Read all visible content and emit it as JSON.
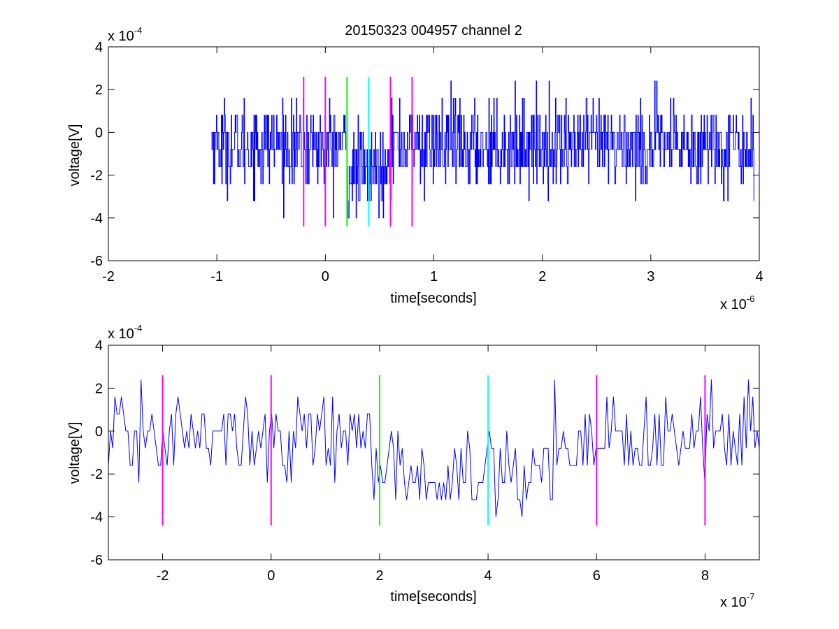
{
  "title": "20150323 004957 channel 2",
  "colors": {
    "signal": "#0000ff",
    "marker_magenta": "#ff00ff",
    "marker_green": "#00ff00",
    "marker_cyan": "#00ffff"
  },
  "chart_data": [
    {
      "type": "line",
      "title": "20150323 004957 channel 2",
      "xlabel": "time[seconds]",
      "ylabel": "voltage[V]",
      "x_exponent": "x 10",
      "x_exponent_power": "-6",
      "y_exponent": "x 10",
      "y_exponent_power": "-4",
      "xlim": [
        -2,
        4
      ],
      "ylim": [
        -6,
        4
      ],
      "xticks": [
        -2,
        -1,
        0,
        1,
        2,
        3,
        4
      ],
      "yticks": [
        -6,
        -4,
        -2,
        0,
        2,
        4
      ],
      "xtick_labels": [
        "-2",
        "-1",
        "0",
        "1",
        "2",
        "3",
        "4"
      ],
      "ytick_labels": [
        "-6",
        "-4",
        "-2",
        "0",
        "2",
        "4"
      ],
      "grid": false,
      "signal": {
        "x_start": -1.05,
        "x_end": 3.95,
        "levels": [
          -4.0,
          -3.2,
          -2.4,
          -1.6,
          -0.8,
          0.0,
          0.8,
          1.6,
          2.4
        ],
        "baseline": -0.6,
        "dip_range": [
          0.2,
          0.55
        ],
        "dip_level": -1.8,
        "samples": 1100
      },
      "markers": [
        {
          "x": -0.2,
          "color": "magenta",
          "y_range": [
            -4.4,
            2.6
          ]
        },
        {
          "x": 0.0,
          "color": "magenta",
          "y_range": [
            -4.4,
            2.6
          ]
        },
        {
          "x": 0.2,
          "color": "green",
          "y_range": [
            -4.4,
            2.6
          ]
        },
        {
          "x": 0.4,
          "color": "cyan",
          "y_range": [
            -4.4,
            2.6
          ]
        },
        {
          "x": 0.6,
          "color": "magenta",
          "y_range": [
            -4.4,
            2.6
          ]
        },
        {
          "x": 0.8,
          "color": "magenta",
          "y_range": [
            -4.4,
            2.6
          ]
        }
      ]
    },
    {
      "type": "line",
      "title": "",
      "xlabel": "time[seconds]",
      "ylabel": "voltage[V]",
      "x_exponent": "x 10",
      "x_exponent_power": "-7",
      "y_exponent": "x 10",
      "y_exponent_power": "-4",
      "xlim": [
        -3,
        9
      ],
      "ylim": [
        -6,
        4
      ],
      "xticks": [
        -2,
        0,
        2,
        4,
        6,
        8
      ],
      "yticks": [
        -6,
        -4,
        -2,
        0,
        2,
        4
      ],
      "xtick_labels": [
        "-2",
        "0",
        "2",
        "4",
        "6",
        "8"
      ],
      "ytick_labels": [
        "-6",
        "-4",
        "-2",
        "0",
        "2",
        "4"
      ],
      "grid": false,
      "signal": {
        "x_start": -3,
        "x_end": 9,
        "levels": [
          -4.0,
          -3.2,
          -2.4,
          -1.6,
          -0.8,
          0.0,
          0.8,
          1.6,
          2.4
        ],
        "baseline": -0.3,
        "dip_range": [
          2.0,
          5.2
        ],
        "dip_level": -2.0,
        "samples": 300
      },
      "markers": [
        {
          "x": -2,
          "color": "magenta",
          "y_range": [
            -4.4,
            2.6
          ]
        },
        {
          "x": 0,
          "color": "magenta",
          "y_range": [
            -4.4,
            2.6
          ]
        },
        {
          "x": 2,
          "color": "green",
          "y_range": [
            -4.4,
            2.6
          ]
        },
        {
          "x": 4,
          "color": "cyan",
          "y_range": [
            -4.4,
            2.6
          ]
        },
        {
          "x": 6,
          "color": "magenta",
          "y_range": [
            -4.4,
            2.6
          ]
        },
        {
          "x": 8,
          "color": "magenta",
          "y_range": [
            -4.4,
            2.6
          ]
        }
      ]
    }
  ]
}
